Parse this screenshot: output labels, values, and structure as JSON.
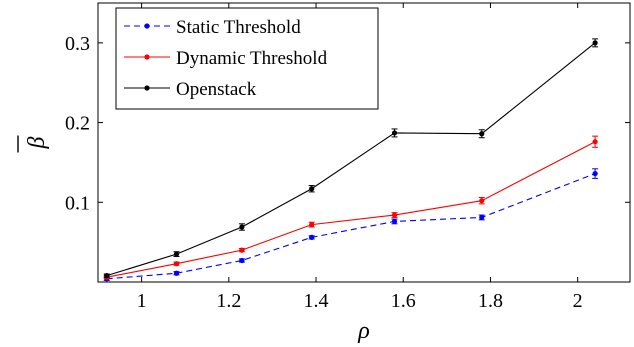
{
  "chart_data": {
    "type": "line",
    "xlabel": "ρ",
    "ylabel": "β",
    "xlim": [
      0.9,
      2.12
    ],
    "ylim": [
      0,
      0.35
    ],
    "x_ticks": [
      1,
      1.2,
      1.4,
      1.6,
      1.8,
      2
    ],
    "x_tick_labels": [
      "1",
      "1.2",
      "1.4",
      "1.6",
      "1.8",
      "2"
    ],
    "y_ticks": [
      0.1,
      0.2,
      0.3
    ],
    "y_tick_labels": [
      "0.1",
      "0.2",
      "0.3"
    ],
    "grid": false,
    "legend_position": "top-left",
    "x": [
      0.92,
      1.08,
      1.23,
      1.39,
      1.58,
      1.78,
      2.04
    ],
    "series": [
      {
        "name": "Static Threshold",
        "color": "#0000ff",
        "dash": true,
        "values": [
          0.004,
          0.011,
          0.027,
          0.056,
          0.076,
          0.081,
          0.136
        ],
        "errors": [
          0.002,
          0.002,
          0.002,
          0.002,
          0.003,
          0.003,
          0.006
        ]
      },
      {
        "name": "Dynamic Threshold",
        "color": "#ff0000",
        "dash": false,
        "values": [
          0.006,
          0.023,
          0.04,
          0.072,
          0.084,
          0.102,
          0.176
        ],
        "errors": [
          0.002,
          0.002,
          0.002,
          0.003,
          0.003,
          0.004,
          0.007
        ]
      },
      {
        "name": "Openstack",
        "color": "#000000",
        "dash": false,
        "values": [
          0.008,
          0.035,
          0.069,
          0.117,
          0.187,
          0.186,
          0.3
        ],
        "errors": [
          0.002,
          0.003,
          0.004,
          0.004,
          0.005,
          0.005,
          0.005
        ]
      }
    ]
  }
}
